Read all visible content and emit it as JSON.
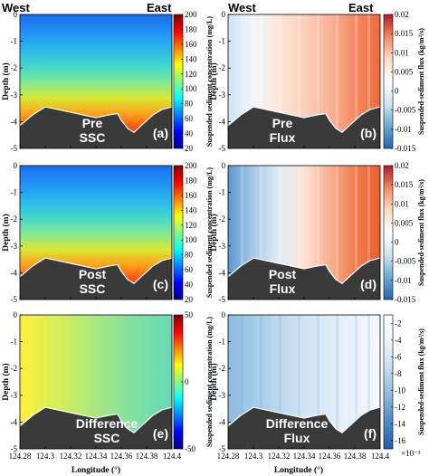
{
  "colors": {
    "jet": [
      "#00008f",
      "#0000ff",
      "#0080ff",
      "#00ffff",
      "#80ff80",
      "#ffff00",
      "#ff8000",
      "#ff0000",
      "#800000"
    ],
    "diverging": [
      "#2166ac",
      "#67a9cf",
      "#d1e5f0",
      "#ffffff",
      "#fddbc7",
      "#ef8a62",
      "#b2182b"
    ],
    "blues": [
      "#1f5fa8",
      "#4a8ac4",
      "#8db9dc",
      "#c6dcef",
      "#eef5fb",
      "#ffffff"
    ],
    "bed": "#3a3a3a"
  },
  "figure": {
    "west_label": "West",
    "east_label": "East",
    "x_axis_label": "Longitude (°)",
    "y_axis_label": "Depth (m)",
    "ssc_cbar_label": "Suspended sediment concentration (mg/L)",
    "flux_cbar_label": "Suspended-sediment flux (kg/m²/s)",
    "flux_cbar_label_f": "Suspended-sediment flux (kg/m²/s)",
    "exponent_label": "×10⁻³"
  },
  "chart_data": [
    {
      "panel": "a",
      "type": "heatmap",
      "label1": "Pre",
      "label2": "SSC",
      "letter": "(a)",
      "x_ticks": [
        "124.28",
        "124.3",
        "124.32",
        "124.34",
        "124.36",
        "124.38",
        "124.4"
      ],
      "y_ticks": [
        "0",
        "-1",
        "-2",
        "-3",
        "-4",
        "-5"
      ],
      "xlim": [
        124.28,
        124.4
      ],
      "ylim": [
        -5,
        0
      ],
      "cbar_range": [
        20,
        200
      ],
      "cbar_ticks": [
        "200",
        "180",
        "160",
        "140",
        "120",
        "100",
        "80",
        "60",
        "40",
        "20"
      ]
    },
    {
      "panel": "b",
      "type": "heatmap",
      "label1": "Pre",
      "label2": "Flux",
      "letter": "(b)",
      "x_ticks": [
        "124.28",
        "124.3",
        "124.32",
        "124.34",
        "124.36",
        "124.38",
        "124.4"
      ],
      "y_ticks": [
        "0",
        "-1",
        "-2",
        "-3",
        "-4",
        "-5"
      ],
      "xlim": [
        124.28,
        124.4
      ],
      "ylim": [
        -5,
        0
      ],
      "cbar_range": [
        -0.015,
        0.02
      ],
      "cbar_ticks": [
        "0.02",
        "0.015",
        "0.01",
        "0.005",
        "0",
        "-0.005",
        "-0.01",
        "-0.015"
      ]
    },
    {
      "panel": "c",
      "type": "heatmap",
      "label1": "Post",
      "label2": "SSC",
      "letter": "(c)",
      "x_ticks": [
        "124.28",
        "124.3",
        "124.32",
        "124.34",
        "124.36",
        "124.38",
        "124.4"
      ],
      "y_ticks": [
        "0",
        "-1",
        "-2",
        "-3",
        "-4",
        "-5"
      ],
      "xlim": [
        124.28,
        124.4
      ],
      "ylim": [
        -5,
        0
      ],
      "cbar_range": [
        20,
        200
      ],
      "cbar_ticks": [
        "200",
        "180",
        "160",
        "140",
        "120",
        "100",
        "80",
        "60",
        "40",
        "20"
      ]
    },
    {
      "panel": "d",
      "type": "heatmap",
      "label1": "Post",
      "label2": "Flux",
      "letter": "(d)",
      "x_ticks": [
        "124.28",
        "124.3",
        "124.32",
        "124.34",
        "124.36",
        "124.38",
        "124.4"
      ],
      "y_ticks": [
        "0",
        "-1",
        "-2",
        "-3",
        "-4",
        "-5"
      ],
      "xlim": [
        124.28,
        124.4
      ],
      "ylim": [
        -5,
        0
      ],
      "cbar_range": [
        -0.015,
        0.02
      ],
      "cbar_ticks": [
        "0.02",
        "0.015",
        "0.01",
        "0.005",
        "0",
        "-0.005",
        "-0.01",
        "-0.015"
      ]
    },
    {
      "panel": "e",
      "type": "heatmap",
      "label1": "Difference",
      "label2": "SSC",
      "letter": "(e)",
      "x_ticks": [
        "124.28",
        "124.3",
        "124.32",
        "124.34",
        "124.36",
        "124.38",
        "124.4"
      ],
      "y_ticks": [
        "0",
        "-1",
        "-2",
        "-3",
        "-4",
        "-5"
      ],
      "xlim": [
        124.28,
        124.4
      ],
      "ylim": [
        -5,
        0
      ],
      "cbar_range": [
        -50,
        50
      ],
      "cbar_ticks": [
        "50",
        "0",
        "-50"
      ]
    },
    {
      "panel": "f",
      "type": "heatmap",
      "label1": "Difference",
      "label2": "Flux",
      "letter": "(f)",
      "x_ticks": [
        "124.28",
        "124.3",
        "124.32",
        "124.34",
        "124.36",
        "124.38",
        "124.4"
      ],
      "y_ticks": [
        "0",
        "-1",
        "-2",
        "-3",
        "-4",
        "-5"
      ],
      "xlim": [
        124.28,
        124.4
      ],
      "ylim": [
        -5,
        0
      ],
      "cbar_range": [
        -17,
        -1
      ],
      "cbar_ticks": [
        "-2",
        "-4",
        "-6",
        "-8",
        "-10",
        "-12",
        "-14",
        "-16"
      ]
    }
  ]
}
